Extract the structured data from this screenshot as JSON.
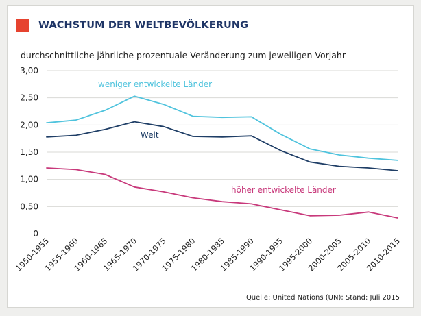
{
  "header": {
    "title": "WACHSTUM DER WELTBEVÖLKERUNG",
    "subtitle": "durchschnittliche jährliche prozentuale Veränderung zum jeweiligen Vorjahr"
  },
  "footer": {
    "source": "Quelle: United Nations (UN); Stand: Juli 2015"
  },
  "colors": {
    "accent": "#e6432f",
    "title": "#1f3566",
    "less_developed": "#4fc3dd",
    "world": "#1f3e66",
    "more_developed": "#c8397b"
  },
  "chart_data": {
    "type": "line",
    "title": "WACHSTUM DER WELTBEVÖLKERUNG",
    "subtitle": "durchschnittliche jährliche prozentuale Veränderung zum jeweiligen Vorjahr",
    "categories": [
      "1950-1955",
      "1955-1960",
      "1960-1965",
      "1965-1970",
      "1970-1975",
      "1975-1980",
      "1980-1985",
      "1985-1990",
      "1990-1995",
      "1995-2000",
      "2000-2005",
      "2005-2010",
      "2010-2015"
    ],
    "ylim": [
      0,
      3
    ],
    "yticks": [
      0,
      0.5,
      1,
      1.5,
      2,
      2.5,
      3
    ],
    "ytick_labels": [
      "0",
      "0,50",
      "1,00",
      "1,50",
      "2,00",
      "2,50",
      "3,00"
    ],
    "grid": true,
    "series": [
      {
        "name": "weniger entwickelte Länder",
        "color": "#4fc3dd",
        "values": [
          2.04,
          2.09,
          2.27,
          2.53,
          2.38,
          2.16,
          2.14,
          2.15,
          1.83,
          1.56,
          1.45,
          1.39,
          1.35
        ]
      },
      {
        "name": "Welt",
        "color": "#1f3e66",
        "values": [
          1.78,
          1.81,
          1.92,
          2.06,
          1.97,
          1.79,
          1.78,
          1.8,
          1.53,
          1.32,
          1.24,
          1.21,
          1.16
        ]
      },
      {
        "name": "höher entwickelte Länder",
        "color": "#c8397b",
        "values": [
          1.21,
          1.18,
          1.09,
          0.86,
          0.77,
          0.66,
          0.59,
          0.55,
          0.44,
          0.33,
          0.34,
          0.4,
          0.29
        ]
      }
    ]
  }
}
